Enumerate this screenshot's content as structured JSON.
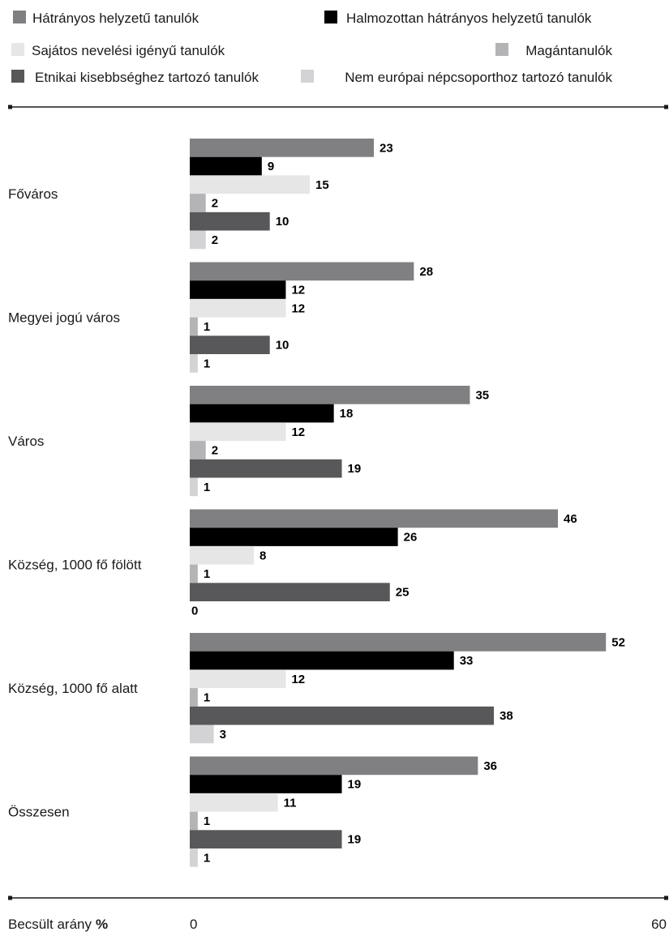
{
  "chart_data": {
    "type": "bar",
    "orientation": "horizontal",
    "categories": [
      "Főváros",
      "Megyei jogú város",
      "Város",
      "Község, 1000 fő fölött",
      "Község, 1000 fő alatt",
      "Összesen"
    ],
    "series": [
      {
        "name": "Hátrányos helyzetű tanulók",
        "color": "#808083",
        "values": [
          23,
          28,
          35,
          46,
          52,
          36
        ]
      },
      {
        "name": "Halmozottan hátrányos helyzetű tanulók",
        "color": "#000000",
        "values": [
          9,
          12,
          18,
          26,
          33,
          19
        ]
      },
      {
        "name": "Sajátos nevelési igényű tanulók",
        "color": "#e6e6e6",
        "values": [
          15,
          12,
          12,
          8,
          12,
          11
        ]
      },
      {
        "name": "Magántanulók",
        "color": "#b4b4b6",
        "values": [
          2,
          1,
          2,
          1,
          1,
          1
        ]
      },
      {
        "name": "Etnikai kisebbséghez tartozó tanulók",
        "color": "#58585a",
        "values": [
          10,
          10,
          19,
          25,
          38,
          19
        ]
      },
      {
        "name": "Nem európai népcsoporthoz tartozó tanulók",
        "color": "#d3d3d5",
        "values": [
          2,
          1,
          1,
          0,
          3,
          1
        ]
      }
    ],
    "xlabel": "Becsült arány",
    "xlabel_unit": "%",
    "xlim": [
      0,
      60
    ],
    "x_tick_labels": [
      "0",
      "60"
    ],
    "grid": false,
    "legend_position": "top"
  }
}
